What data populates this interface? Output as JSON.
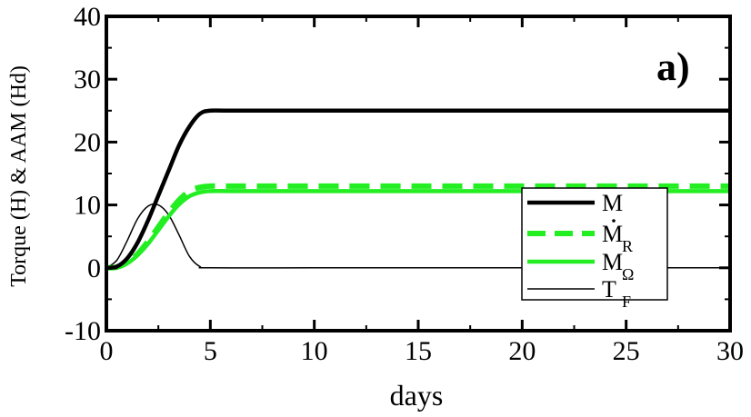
{
  "chart_data": {
    "type": "line",
    "panel_label": "a)",
    "xlabel": "days",
    "ylabel": "Torque (H) & AAM (Hd)",
    "xlim": [
      0,
      30
    ],
    "ylim": [
      -10,
      40
    ],
    "x_ticks": [
      0,
      5,
      10,
      15,
      20,
      25,
      30
    ],
    "y_ticks": [
      -10,
      0,
      10,
      20,
      30,
      40
    ],
    "grid": false,
    "legend_position": "center-right",
    "series": [
      {
        "name": "M",
        "name_sub": "",
        "name_dot": false,
        "color": "#000000",
        "style": "solid-thick",
        "x": [
          0,
          0.5,
          1,
          1.5,
          2,
          2.5,
          3,
          3.5,
          4,
          4.5,
          5,
          6,
          10,
          15,
          20,
          25,
          30
        ],
        "y": [
          0,
          0.2,
          1.5,
          4.0,
          7.5,
          11.5,
          15.5,
          19.5,
          22.5,
          24.5,
          25,
          25,
          25,
          25,
          25,
          25,
          25
        ]
      },
      {
        "name": "M",
        "name_sub": "R",
        "name_dot": true,
        "color": "#22ee22",
        "style": "dashed-thick",
        "x": [
          0,
          0.5,
          1,
          1.5,
          2,
          2.5,
          3,
          3.5,
          4,
          4.5,
          5,
          6,
          10,
          15,
          20,
          25,
          30
        ],
        "y": [
          0,
          0.1,
          0.8,
          2.2,
          4.2,
          6.5,
          8.8,
          10.8,
          12.2,
          12.8,
          13,
          13,
          13,
          13,
          13,
          13,
          13
        ]
      },
      {
        "name": "M",
        "name_sub": "Ω",
        "name_dot": false,
        "color": "#22ee22",
        "style": "solid-thick",
        "x": [
          0,
          0.5,
          1,
          1.5,
          2,
          2.5,
          3,
          3.5,
          4,
          4.5,
          5,
          6,
          10,
          15,
          20,
          25,
          30
        ],
        "y": [
          0,
          0.1,
          0.7,
          2.0,
          3.8,
          6.0,
          8.2,
          10.1,
          11.4,
          12.0,
          12.2,
          12.2,
          12.2,
          12.2,
          12.2,
          12.2,
          12.2
        ]
      },
      {
        "name": "T",
        "name_sub": "F",
        "name_dot": false,
        "color": "#000000",
        "style": "solid-thin",
        "x": [
          0,
          0.5,
          1,
          1.5,
          2,
          2.5,
          3,
          3.5,
          4,
          4.5,
          5,
          10,
          15,
          20,
          25,
          30
        ],
        "y": [
          0,
          1.2,
          4.3,
          7.8,
          9.8,
          10,
          8.4,
          5.2,
          1.8,
          0.2,
          0,
          0,
          0,
          0,
          0,
          0
        ]
      }
    ]
  }
}
